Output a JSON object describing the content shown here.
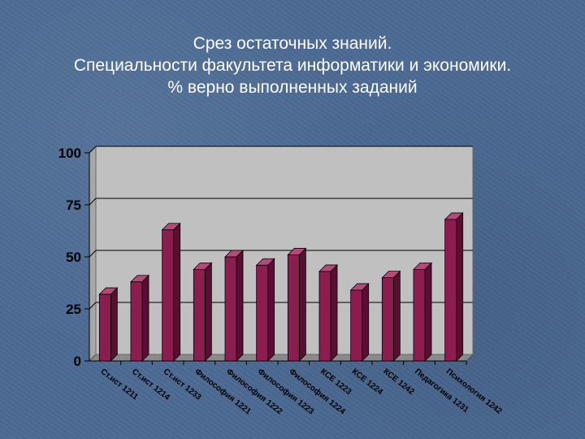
{
  "title": {
    "line1": "Срез остаточных знаний.",
    "line2": "Специальности факультета информатики и экономики.",
    "line3": "% верно выполненных заданий"
  },
  "chart_data": {
    "type": "bar",
    "categories": [
      "Ст.ист 1211",
      "Ст.ист 1214",
      "Ст.ист 1233",
      "Философия 1221",
      "Философия 1222",
      "Философия 1223",
      "Философия 1224",
      "КСЕ 1223",
      "КСЕ 1224",
      "КСЕ 1242",
      "Педагогика 1231",
      "Психология 1242"
    ],
    "values": [
      32,
      38,
      63,
      44,
      50,
      46,
      51,
      43,
      34,
      40,
      44,
      68
    ],
    "ylim": [
      0,
      100
    ],
    "yticks": [
      "0",
      "25",
      "50",
      "75",
      "100"
    ],
    "grid": true,
    "colors": {
      "bar_front": "#8b1d4f",
      "bar_side": "#5a0f32",
      "bar_top": "#b54a7a",
      "plot_bg": "#c0c0c0",
      "plot_wall": "#a7a7a7"
    }
  }
}
